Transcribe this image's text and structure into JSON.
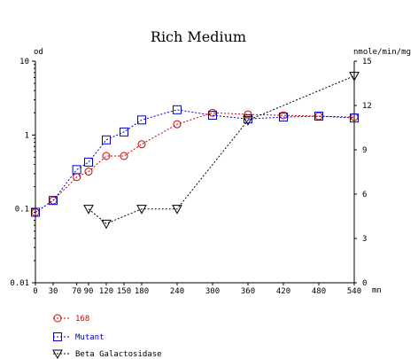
{
  "chart_data": {
    "type": "line",
    "title": "Rich Medium",
    "ylabel_left": "od",
    "ylabel_right": "nmole/min/mg",
    "x_unit": "mn",
    "x_ticks": [
      0,
      30,
      70,
      90,
      120,
      150,
      180,
      240,
      300,
      360,
      420,
      480,
      540
    ],
    "left_axis": {
      "scale": "log",
      "range": [
        0.01,
        10
      ],
      "ticks": [
        0.01,
        0.1,
        1,
        10
      ],
      "tick_labels": [
        "0.01",
        "0.1",
        "1",
        "10"
      ]
    },
    "right_axis": {
      "scale": "linear",
      "range": [
        0,
        15
      ],
      "ticks": [
        0,
        3,
        6,
        9,
        12,
        15
      ],
      "tick_labels": [
        "0",
        "3",
        "6",
        "9",
        "12",
        "15"
      ]
    },
    "grid": false,
    "legend_position": "bottom-left",
    "series": [
      {
        "name": "168",
        "axis": "left",
        "marker": "circle",
        "color": "#d00000",
        "x": [
          0,
          30,
          70,
          90,
          120,
          150,
          180,
          240,
          300,
          360,
          420,
          480,
          540
        ],
        "y": [
          0.09,
          0.13,
          0.27,
          0.32,
          0.52,
          0.52,
          0.75,
          1.4,
          2.0,
          1.9,
          1.85,
          1.8,
          1.75
        ]
      },
      {
        "name": "Mutant",
        "axis": "left",
        "marker": "square",
        "color": "#0000d0",
        "x": [
          0,
          30,
          70,
          90,
          120,
          150,
          180,
          240,
          300,
          360,
          420,
          480,
          540
        ],
        "y": [
          0.09,
          0.13,
          0.34,
          0.43,
          0.86,
          1.1,
          1.6,
          2.2,
          1.85,
          1.65,
          1.75,
          1.8,
          1.7
        ]
      },
      {
        "name": "Beta Galactosidase",
        "axis": "right",
        "marker": "triangle-down",
        "color": "#000000",
        "x": [
          90,
          120,
          180,
          240,
          360,
          540
        ],
        "y": [
          5.0,
          4.0,
          5.0,
          5.0,
          11.0,
          14.0
        ]
      }
    ]
  }
}
